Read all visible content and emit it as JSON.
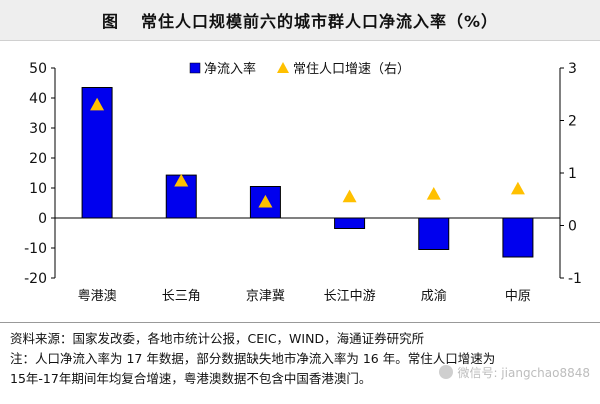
{
  "title": {
    "prefix": "图",
    "text": "常住人口规模前六的城市群人口净流入率（%）"
  },
  "chart_data": {
    "type": "bar",
    "categories": [
      "粤港澳",
      "长三角",
      "京津冀",
      "长江中游",
      "成渝",
      "中原"
    ],
    "series": [
      {
        "name": "净流入率",
        "type": "bar",
        "axis": "left",
        "color": "#0000ee",
        "values": [
          43.5,
          14.3,
          10.5,
          -3.5,
          -10.5,
          -13.0
        ]
      },
      {
        "name": "常住人口增速（右）",
        "type": "scatter",
        "marker": "triangle",
        "axis": "right",
        "color": "#ffc000",
        "values": [
          2.3,
          0.85,
          0.45,
          0.55,
          0.6,
          0.7
        ]
      }
    ],
    "y_left": {
      "min": -20,
      "max": 50,
      "ticks": [
        "50",
        "40",
        "30",
        "20",
        "10",
        "0",
        "-10",
        "-20"
      ]
    },
    "y_right": {
      "min": -1,
      "max": 3,
      "ticks": [
        "3",
        "2",
        "1",
        "0",
        "-1"
      ]
    },
    "legend_position": "top",
    "grid": false
  },
  "footer": {
    "source": "资料来源：国家发改委，各地市统计公报，CEIC，WIND，海通证券研究所",
    "note_line1": "注：人口净流入率为 17 年数据，部分数据缺失地市净流入率为 16 年。常住人口增速为",
    "note_line2": "15年-17年期间年均复合增速，粤港澳数据不包含中国香港澳门。"
  },
  "watermark": {
    "text": "微信号: jiangchao8848"
  }
}
